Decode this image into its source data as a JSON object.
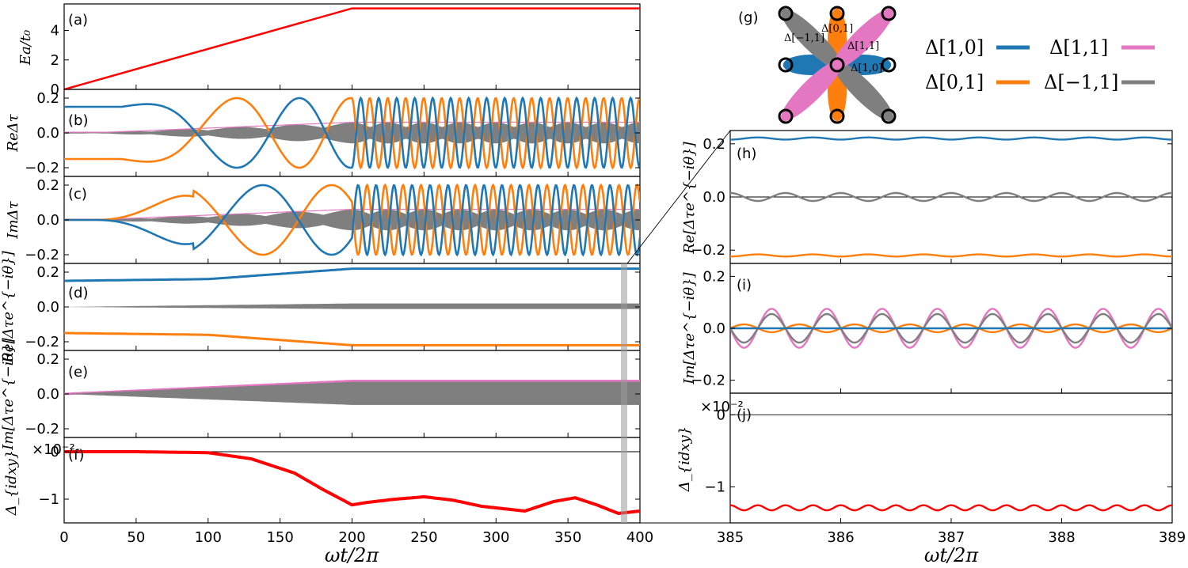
{
  "colors": {
    "blue": "#1f77b4",
    "orange": "#ff7f0e",
    "pink": "#e377c2",
    "gray": "#7f7f7f",
    "red": "#ff0000",
    "highlight": "#b8b8b8"
  },
  "legend": {
    "panel_label": "(g)",
    "entries": [
      {
        "label": "Δ[1,0]",
        "color": "#1f77b4"
      },
      {
        "label": "Δ[1,1]",
        "color": "#e377c2"
      },
      {
        "label": "Δ[0,1]",
        "color": "#ff7f0e"
      },
      {
        "label": "Δ[−1,1]",
        "color": "#7f7f7f"
      }
    ],
    "lattice_labels": [
      "Δ[0,1]",
      "Δ[−1,1]",
      "Δ[1,1]",
      "Δ[1,0]"
    ]
  },
  "chart_data": [
    {
      "id": "a",
      "panel_label": "(a)",
      "type": "line",
      "ylabel": "Ea/t₀",
      "xlim": [
        0,
        400
      ],
      "ylim": [
        0,
        5.8
      ],
      "yticks": [
        "0",
        "2",
        "4"
      ],
      "series": [
        {
          "color": "#ff0000",
          "x": [
            0,
            200,
            400
          ],
          "values": [
            0,
            5.5,
            5.5
          ]
        }
      ]
    },
    {
      "id": "b",
      "panel_label": "(b)",
      "type": "line",
      "ylabel": "ReΔτ",
      "xlim": [
        0,
        400
      ],
      "ylim": [
        -0.25,
        0.25
      ],
      "yticks": [
        "0.2",
        "0.0",
        "−0.2"
      ],
      "series": [
        {
          "color": "#1f77b4",
          "description": "oscillation amplitude 0.2, starts at 0.15 then grows",
          "amplitude": 0.2
        },
        {
          "color": "#ff7f0e",
          "description": "mirror of blue, starts at -0.15",
          "amplitude": 0.2
        },
        {
          "color": "#7f7f7f",
          "description": "fast-oscillating band around 0, width up to ±0.06",
          "amplitude": 0.06
        }
      ]
    },
    {
      "id": "c",
      "panel_label": "(c)",
      "type": "line",
      "ylabel": "ImΔτ",
      "xlim": [
        0,
        400
      ],
      "ylim": [
        -0.25,
        0.25
      ],
      "yticks": [
        "0.2",
        "0.0",
        "−0.2"
      ],
      "series": [
        {
          "color": "#1f77b4",
          "amplitude": 0.2
        },
        {
          "color": "#ff7f0e",
          "amplitude": 0.2
        },
        {
          "color": "#7f7f7f",
          "amplitude": 0.06
        }
      ]
    },
    {
      "id": "d",
      "panel_label": "(d)",
      "type": "line",
      "ylabel": "Re[Δτe^{−iθ}]",
      "xlim": [
        0,
        400
      ],
      "ylim": [
        -0.25,
        0.25
      ],
      "yticks": [
        "0.2",
        "0.0",
        "−0.2"
      ],
      "series": [
        {
          "color": "#1f77b4",
          "x": [
            0,
            100,
            200,
            400
          ],
          "values": [
            0.15,
            0.16,
            0.22,
            0.22
          ]
        },
        {
          "color": "#ff7f0e",
          "x": [
            0,
            100,
            200,
            400
          ],
          "values": [
            -0.15,
            -0.16,
            -0.22,
            -0.22
          ]
        },
        {
          "color": "#7f7f7f",
          "x": [
            0,
            200,
            400
          ],
          "values": [
            0,
            0,
            0
          ],
          "band": [
            0.0,
            0.02,
            0.02
          ]
        }
      ]
    },
    {
      "id": "e",
      "panel_label": "(e)",
      "type": "line",
      "ylabel": "Im[Δτe^{−iθ}]",
      "xlim": [
        0,
        400
      ],
      "ylim": [
        -0.25,
        0.25
      ],
      "yticks": [
        "0.2",
        "0.0",
        "−0.2"
      ],
      "series": [
        {
          "color": "#7f7f7f",
          "x": [
            0,
            200,
            400
          ],
          "values": [
            0,
            0,
            0
          ],
          "band": [
            0.0,
            0.07,
            0.07
          ]
        },
        {
          "color": "#e377c2",
          "x": [
            0,
            200,
            400
          ],
          "values": [
            0,
            0.075,
            0.075
          ]
        }
      ]
    },
    {
      "id": "f",
      "panel_label": "(f)",
      "type": "line",
      "ylabel": "Δ_{idxy}",
      "scale": "×10⁻²",
      "xlabel": "ωt/2π",
      "xlim": [
        0,
        400
      ],
      "ylim": [
        -1.5,
        0.3
      ],
      "yticks": [
        "0",
        "−1"
      ],
      "xticks": [
        "0",
        "50",
        "100",
        "150",
        "200",
        "250",
        "300",
        "350",
        "400"
      ],
      "series": [
        {
          "color": "#ff0000",
          "x": [
            0,
            50,
            100,
            130,
            160,
            180,
            200,
            210,
            230,
            250,
            270,
            290,
            320,
            340,
            355,
            370,
            385,
            400
          ],
          "values": [
            0,
            0,
            -0.02,
            -0.15,
            -0.45,
            -0.8,
            -1.12,
            -1.07,
            -1.0,
            -0.95,
            -1.02,
            -1.15,
            -1.25,
            -1.05,
            -0.97,
            -1.12,
            -1.3,
            -1.25
          ]
        }
      ]
    },
    {
      "id": "h",
      "panel_label": "(h)",
      "type": "line",
      "ylabel": "Re[Δτe^{−iθ}]",
      "xlim": [
        385,
        389
      ],
      "ylim": [
        -0.25,
        0.25
      ],
      "yticks": [
        "0.2",
        "0.0",
        "−0.2"
      ],
      "series": [
        {
          "color": "#1f77b4",
          "mean": 0.22,
          "amplitude": 0.004
        },
        {
          "color": "#7f7f7f",
          "mean": 0.0,
          "amplitude": 0.015
        },
        {
          "color": "#ff7f0e",
          "mean": -0.22,
          "amplitude": 0.004
        }
      ]
    },
    {
      "id": "i",
      "panel_label": "(i)",
      "type": "line",
      "ylabel": "Im[Δτe^{−iθ}]",
      "xlim": [
        385,
        389
      ],
      "ylim": [
        -0.25,
        0.25
      ],
      "yticks": [
        "0.2",
        "0.0",
        "−0.2"
      ],
      "series": [
        {
          "color": "#e377c2",
          "mean": 0.0,
          "amplitude": 0.075
        },
        {
          "color": "#7f7f7f",
          "mean": 0.0,
          "amplitude": 0.055
        },
        {
          "color": "#ff7f0e",
          "mean": 0.0,
          "amplitude": 0.015
        },
        {
          "color": "#1f77b4",
          "mean": 0.0,
          "amplitude": 0.0
        }
      ]
    },
    {
      "id": "j",
      "panel_label": "(j)",
      "type": "line",
      "ylabel": "Δ_{idxy}",
      "scale": "×10⁻²",
      "xlabel": "ωt/2π",
      "xlim": [
        385,
        389
      ],
      "ylim": [
        -1.5,
        0.3
      ],
      "yticks": [
        "0",
        "−1"
      ],
      "xticks": [
        "385",
        "386",
        "387",
        "388",
        "389"
      ],
      "series": [
        {
          "color": "#ff0000",
          "mean": -1.29,
          "amplitude": 0.035
        }
      ]
    }
  ]
}
